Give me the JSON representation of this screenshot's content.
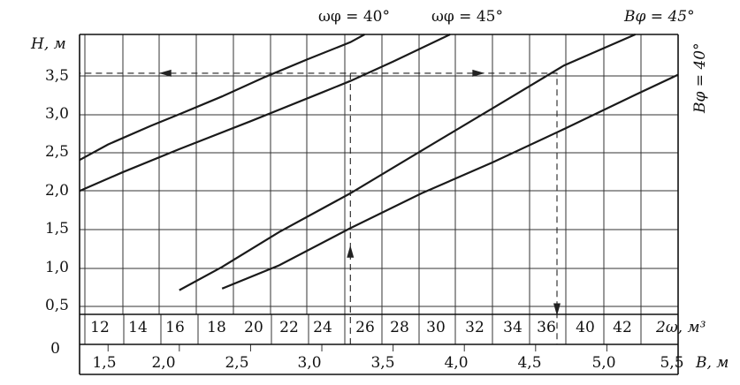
{
  "chart_data": {
    "type": "line",
    "title": "",
    "ylabel": "H, м",
    "ylim": [
      0,
      4.0
    ],
    "y_ticks": [
      "0",
      "0,5",
      "1,0",
      "1,5",
      "2,0",
      "2,5",
      "3,0",
      "3,5"
    ],
    "x_axes": [
      {
        "label": "B, м",
        "xlim": [
          1.3,
          5.5
        ],
        "ticks": [
          "1,5",
          "2,0",
          "2,5",
          "3,0",
          "3,5",
          "4,0",
          "4,5",
          "5,0",
          "5,5"
        ]
      },
      {
        "label": "2ω, м³",
        "ticks": [
          "12",
          "14",
          "16",
          "18",
          "20",
          "22",
          "24",
          "26",
          "28",
          "30",
          "32",
          "34",
          "36",
          "40",
          "42"
        ]
      }
    ],
    "series": [
      {
        "name": "ωφ = 40°",
        "x": [
          1.3,
          1.5,
          1.8,
          2.0,
          2.3,
          2.6,
          2.9,
          3.2,
          3.3
        ],
        "y": [
          2.38,
          2.58,
          2.82,
          2.97,
          3.2,
          3.45,
          3.68,
          3.9,
          4.0
        ]
      },
      {
        "name": "ωφ = 45°",
        "x": [
          1.3,
          1.6,
          2.0,
          2.5,
          3.0,
          3.2,
          3.5,
          3.9
        ],
        "y": [
          1.98,
          2.22,
          2.52,
          2.88,
          3.25,
          3.4,
          3.65,
          4.0
        ]
      },
      {
        "name": "Bφ = 45°",
        "x": [
          2.0,
          2.3,
          2.7,
          3.2,
          3.7,
          4.2,
          4.7,
          5.2
        ],
        "y": [
          0.7,
          1.0,
          1.45,
          1.95,
          2.5,
          3.05,
          3.6,
          4.0
        ]
      },
      {
        "name": "Bφ = 40°",
        "x": [
          2.3,
          2.7,
          3.2,
          3.7,
          4.2,
          4.7,
          5.2,
          5.5
        ],
        "y": [
          0.72,
          1.02,
          1.5,
          1.95,
          2.35,
          2.78,
          3.22,
          3.48
        ]
      }
    ],
    "annotations": [
      {
        "type": "dashed-path",
        "points": [
          [
            3.2,
            0
          ],
          [
            3.2,
            3.5
          ],
          [
            1.3,
            3.5
          ]
        ]
      },
      {
        "type": "dashed-path",
        "points": [
          [
            3.2,
            3.5
          ],
          [
            4.65,
            3.5
          ],
          [
            4.65,
            0
          ]
        ]
      }
    ],
    "grid": true,
    "legend": "curve labels on the chart"
  }
}
